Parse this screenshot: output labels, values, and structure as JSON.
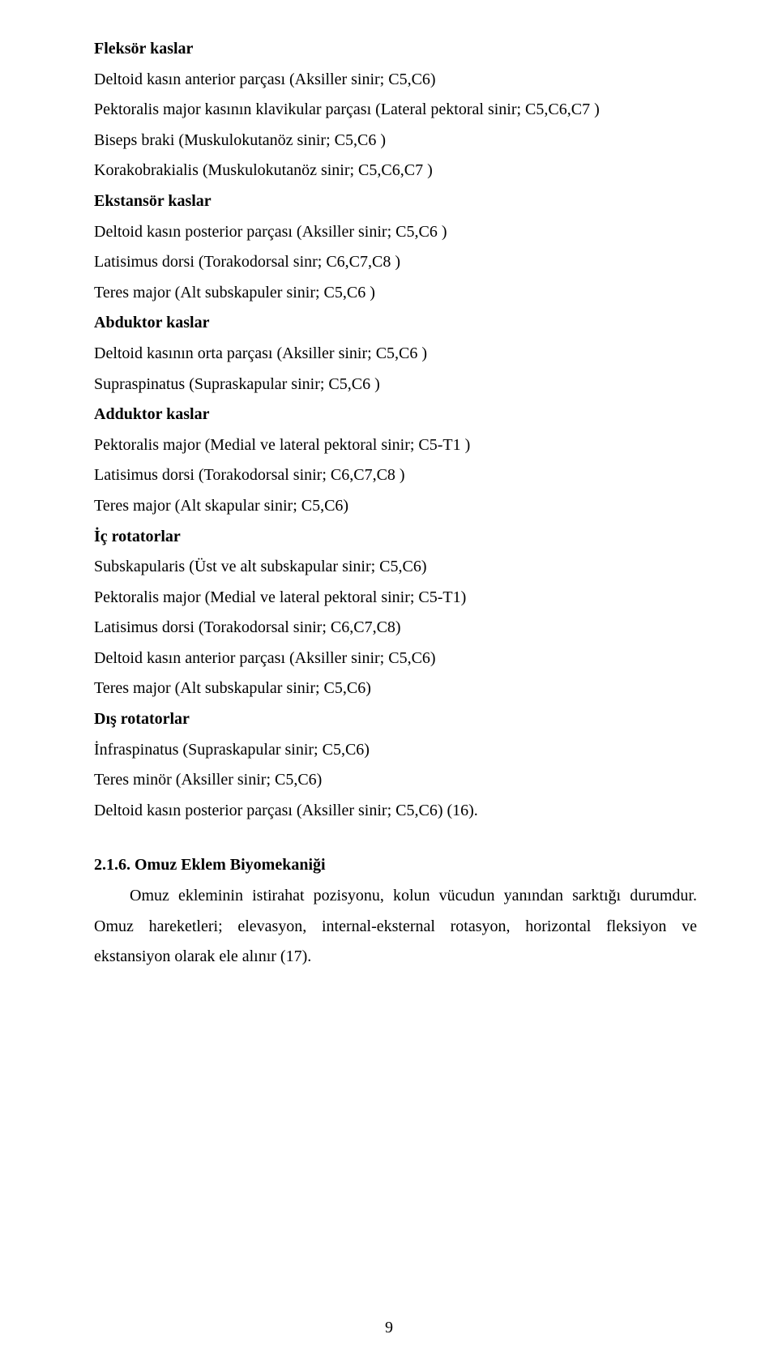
{
  "lines": [
    {
      "text": "Fleksör kaslar",
      "bold": true
    },
    {
      "text": "Deltoid kasın anterior parçası (Aksiller sinir; C5,C6)",
      "bold": false
    },
    {
      "text": "Pektoralis major kasının klavikular parçası (Lateral pektoral sinir; C5,C6,C7 )",
      "bold": false
    },
    {
      "text": "Biseps braki (Muskulokutanöz sinir; C5,C6 )",
      "bold": false
    },
    {
      "text": "Korakobrakialis (Muskulokutanöz sinir; C5,C6,C7 )",
      "bold": false
    },
    {
      "text": "Ekstansör kaslar",
      "bold": true
    },
    {
      "text": "Deltoid kasın posterior parçası (Aksiller sinir; C5,C6 )",
      "bold": false
    },
    {
      "text": "Latisimus dorsi (Torakodorsal sinr; C6,C7,C8 )",
      "bold": false
    },
    {
      "text": "Teres major (Alt subskapuler sinir; C5,C6 )",
      "bold": false
    },
    {
      "text": "Abduktor kaslar",
      "bold": true
    },
    {
      "text": "Deltoid kasının orta parçası (Aksiller sinir; C5,C6 )",
      "bold": false
    },
    {
      "text": "Supraspinatus (Supraskapular sinir; C5,C6 )",
      "bold": false
    },
    {
      "text": "Adduktor kaslar",
      "bold": true
    },
    {
      "text": "Pektoralis major (Medial ve lateral pektoral sinir; C5-T1 )",
      "bold": false
    },
    {
      "text": "Latisimus dorsi (Torakodorsal sinir; C6,C7,C8 )",
      "bold": false
    },
    {
      "text": "Teres major (Alt skapular sinir; C5,C6)",
      "bold": false
    },
    {
      "text": "İç rotatorlar",
      "bold": true
    },
    {
      "text": "Subskapularis (Üst ve alt subskapular sinir; C5,C6)",
      "bold": false
    },
    {
      "text": "Pektoralis major (Medial ve lateral pektoral sinir; C5-T1)",
      "bold": false
    },
    {
      "text": "Latisimus dorsi (Torakodorsal sinir; C6,C7,C8)",
      "bold": false
    },
    {
      "text": "Deltoid kasın anterior parçası (Aksiller sinir; C5,C6)",
      "bold": false
    },
    {
      "text": "Teres major (Alt subskapular sinir; C5,C6)",
      "bold": false
    },
    {
      "text": "Dış rotatorlar",
      "bold": true
    },
    {
      "text": "İnfraspinatus (Supraskapular sinir; C5,C6)",
      "bold": false
    },
    {
      "text": "Teres minör (Aksiller sinir; C5,C6)",
      "bold": false
    },
    {
      "text": "Deltoid kasın posterior parçası (Aksiller sinir; C5,C6) (16).",
      "bold": false
    }
  ],
  "section": {
    "heading": "2.1.6. Omuz Eklem Biyomekaniği",
    "paragraphs": [
      "Omuz ekleminin istirahat pozisyonu, kolun vücudun yanından sarktığı durumdur. Omuz hareketleri; elevasyon, internal-eksternal rotasyon, horizontal fleksiyon ve ekstansiyon olarak ele alınır (17)."
    ]
  },
  "pageNumber": "9"
}
